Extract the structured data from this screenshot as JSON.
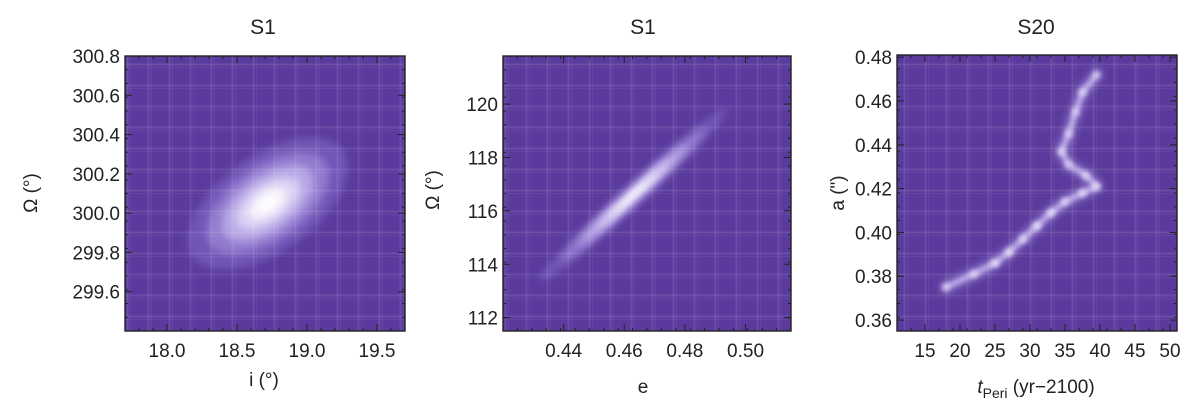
{
  "chart_data": [
    {
      "type": "heatmap",
      "title": "S1",
      "xlabel": "i (°)",
      "ylabel": "Ω (°)",
      "xlim": [
        17.7,
        19.7
      ],
      "ylim": [
        299.4,
        300.8
      ],
      "xticks": [
        18.0,
        18.5,
        19.0,
        19.5
      ],
      "xtick_labels": [
        "18.0",
        "18.5",
        "19.0",
        "19.5"
      ],
      "yticks": [
        299.6,
        299.8,
        300.0,
        300.2,
        300.4,
        300.6,
        300.8
      ],
      "ytick_labels": [
        "299.6",
        "299.8",
        "300.0",
        "300.2",
        "300.4",
        "300.6",
        "300.8"
      ],
      "background_color": "#5a3a9c",
      "peak_color": "#fffcee",
      "distribution": {
        "shape": "gaussian",
        "center": [
          18.72,
          300.05
        ],
        "sigma_x": 0.22,
        "sigma_y": 0.13,
        "correlation": 0.55
      }
    },
    {
      "type": "heatmap",
      "title": "S1",
      "xlabel": "e",
      "ylabel": "Ω (°)",
      "xlim": [
        0.42,
        0.515
      ],
      "ylim": [
        111.5,
        121.8
      ],
      "xticks": [
        0.44,
        0.46,
        0.48,
        0.5
      ],
      "xtick_labels": [
        "0.44",
        "0.46",
        "0.48",
        "0.50"
      ],
      "yticks": [
        112,
        114,
        116,
        118,
        120
      ],
      "ytick_labels": [
        "112",
        "114",
        "116",
        "118",
        "120"
      ],
      "background_color": "#5a3a9c",
      "peak_color": "#fffcee",
      "distribution": {
        "shape": "gaussian",
        "center": [
          0.463,
          116.6
        ],
        "sigma_x": 0.012,
        "sigma_y": 1.25,
        "correlation": 0.985
      }
    },
    {
      "type": "heatmap",
      "title": "S20",
      "xlabel_main": "t",
      "xlabel_sub": "Peri",
      "xlabel_rest": " (yr−2100)",
      "ylabel": "a (\")",
      "xlim": [
        11,
        51
      ],
      "ylim": [
        0.355,
        0.481
      ],
      "xticks": [
        15,
        20,
        25,
        30,
        35,
        40,
        45,
        50
      ],
      "xtick_labels": [
        "15",
        "20",
        "25",
        "30",
        "35",
        "40",
        "45",
        "50"
      ],
      "yticks": [
        0.36,
        0.38,
        0.4,
        0.42,
        0.44,
        0.46,
        0.48
      ],
      "ytick_labels": [
        "0.36",
        "0.38",
        "0.40",
        "0.42",
        "0.44",
        "0.46",
        "0.48"
      ],
      "background_color": "#5a3a9c",
      "peak_color": "#fffcee",
      "distribution": {
        "shape": "curved-ridge",
        "path": [
          [
            18,
            0.375
          ],
          [
            22,
            0.381
          ],
          [
            25,
            0.386
          ],
          [
            27,
            0.391
          ],
          [
            29,
            0.397
          ],
          [
            31,
            0.403
          ],
          [
            33,
            0.409
          ],
          [
            35,
            0.414
          ],
          [
            37.5,
            0.418
          ],
          [
            39.5,
            0.421
          ],
          [
            38,
            0.426
          ],
          [
            35.5,
            0.431
          ],
          [
            34.5,
            0.437
          ],
          [
            35.5,
            0.445
          ],
          [
            36.5,
            0.455
          ],
          [
            37.5,
            0.464
          ],
          [
            39.5,
            0.472
          ]
        ],
        "intensities": [
          0.45,
          0.6,
          0.75,
          0.7,
          0.65,
          0.8,
          0.7,
          0.6,
          0.65,
          0.7,
          0.6,
          0.5,
          0.6,
          0.55,
          0.5,
          0.6,
          0.4
        ]
      }
    }
  ]
}
